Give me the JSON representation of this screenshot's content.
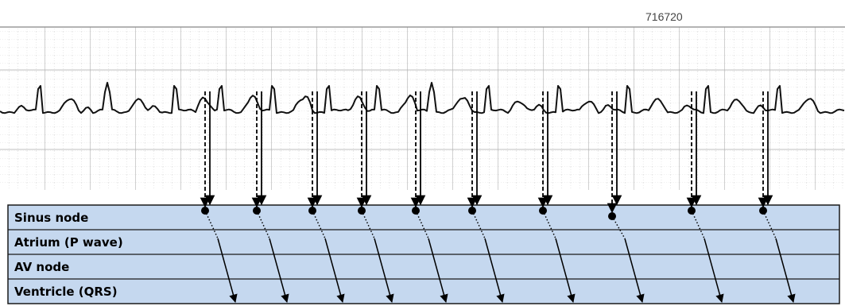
{
  "strip": {
    "id": "716720"
  },
  "ladder": {
    "rows": [
      "Sinus node",
      "Atrium (P wave)",
      "AV node",
      "Ventricle (QRS)"
    ]
  }
}
